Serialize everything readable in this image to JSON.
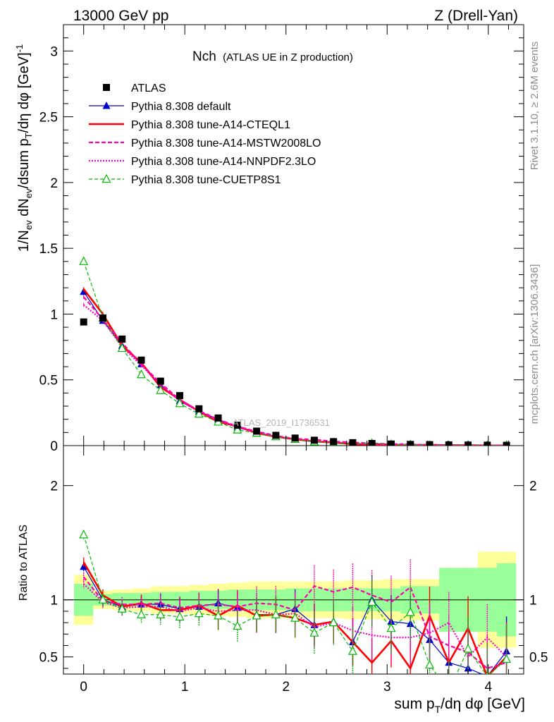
{
  "header": {
    "energy": "13000 GeV pp",
    "process": "Z (Drell-Yan)"
  },
  "side_text": {
    "rivet": "Rivet 3.1.10, ≥ 2.6M events",
    "site": "mcplots.cern.ch [arXiv:1306.3436]"
  },
  "plot_title": {
    "main": "Nch",
    "sub": "(ATLAS UE in Z production)"
  },
  "analysis_tag": "ATLAS_2019_I1736531",
  "chart_data": [
    {
      "type": "line",
      "panel": "main",
      "xlabel": "sum pT/dη dφ [GeV]",
      "ylabel": "1/Nev dNev/dsum pT/dη dφ [GeV]^-1",
      "xlim": [
        -0.2,
        4.35
      ],
      "ylim": [
        0,
        3.2
      ],
      "x_ticks": [
        "0",
        "1",
        "2",
        "3",
        "4"
      ],
      "y_ticks": [
        "0",
        "0.5",
        "1",
        "1.5",
        "2",
        "2.5",
        "3"
      ],
      "x": [
        0.0,
        0.19,
        0.38,
        0.57,
        0.76,
        0.95,
        1.14,
        1.33,
        1.52,
        1.71,
        1.9,
        2.09,
        2.28,
        2.47,
        2.66,
        2.85,
        3.04,
        3.23,
        3.42,
        3.61,
        3.8,
        3.99,
        4.18
      ],
      "series": [
        {
          "name": "ATLAS",
          "color": "#000000",
          "style": "data-squares",
          "values": [
            0.94,
            0.97,
            0.81,
            0.65,
            0.49,
            0.38,
            0.28,
            0.21,
            0.155,
            0.11,
            0.078,
            0.057,
            0.041,
            0.03,
            0.022,
            0.016,
            0.012,
            0.009,
            0.007,
            0.005,
            0.004,
            0.003,
            0.002
          ]
        },
        {
          "name": "Pythia 8.308 default",
          "color": "#0000cc",
          "style": "solid-thin-triangles",
          "values": [
            1.17,
            0.95,
            0.76,
            0.62,
            0.46,
            0.34,
            0.26,
            0.2,
            0.14,
            0.095,
            0.068,
            0.052,
            0.032,
            0.025,
            0.014,
            0.016,
            0.01,
            0.007,
            0.005,
            0.002,
            0.002,
            0.001,
            0.001
          ]
        },
        {
          "name": "Pythia 8.308 tune-A14-CTEQL1",
          "color": "#ff0000",
          "style": "solid-thick",
          "values": [
            1.19,
            1.0,
            0.76,
            0.63,
            0.445,
            0.35,
            0.26,
            0.18,
            0.147,
            0.095,
            0.068,
            0.048,
            0.032,
            0.024,
            0.011,
            0.007,
            0.005,
            0.004,
            0.006,
            0.003,
            0.003,
            0.001,
            0.001
          ]
        },
        {
          "name": "Pythia 8.308 tune-A14-MSTW2008LO",
          "color": "#ff00aa",
          "style": "dashed",
          "values": [
            1.13,
            0.96,
            0.78,
            0.62,
            0.475,
            0.35,
            0.265,
            0.2,
            0.145,
            0.108,
            0.075,
            0.052,
            0.046,
            0.032,
            0.024,
            0.017,
            0.012,
            0.01,
            0.005,
            0.003,
            0.002,
            0.001,
            0.001
          ]
        },
        {
          "name": "Pythia 8.308 tune-A14-NNPDF2.3LO",
          "color": "#ff00cc",
          "style": "dotted",
          "values": [
            1.07,
            0.95,
            0.75,
            0.61,
            0.46,
            0.34,
            0.26,
            0.19,
            0.14,
            0.1,
            0.068,
            0.05,
            0.031,
            0.024,
            0.016,
            0.011,
            0.008,
            0.006,
            0.005,
            0.004,
            0.002,
            0.002,
            0.001
          ]
        },
        {
          "name": "Pythia 8.308 tune-CUETP8S1",
          "color": "#00bb00",
          "style": "dashed-open-triangles",
          "values": [
            1.4,
            0.97,
            0.74,
            0.54,
            0.42,
            0.32,
            0.24,
            0.18,
            0.12,
            0.095,
            0.068,
            0.048,
            0.029,
            0.024,
            0.012,
            0.016,
            0.009,
            0.008,
            0.003,
            0.001,
            0.002,
            0.001,
            0.001
          ]
        }
      ]
    },
    {
      "type": "line",
      "panel": "ratio",
      "xlabel": "sum pT/dη dφ [GeV]",
      "ylabel": "Ratio to ATLAS",
      "xlim": [
        -0.2,
        4.35
      ],
      "ylim": [
        0.35,
        2.35
      ],
      "x_ticks": [
        "0",
        "1",
        "2",
        "3",
        "4"
      ],
      "y_ticks": [
        "0.5",
        "1",
        "2"
      ],
      "reference_line": 1,
      "bands": {
        "green_half_width": [
          0.14,
          0.05,
          0.06,
          0.06,
          0.07,
          0.07,
          0.08,
          0.08,
          0.09,
          0.09,
          0.09,
          0.1,
          0.1,
          0.1,
          0.1,
          0.1,
          0.1,
          0.12,
          0.12,
          0.28,
          0.28,
          0.28,
          0.32
        ],
        "yellow_half_width": [
          0.22,
          0.08,
          0.09,
          0.1,
          0.12,
          0.12,
          0.13,
          0.14,
          0.15,
          0.16,
          0.16,
          0.16,
          0.16,
          0.16,
          0.17,
          0.17,
          0.18,
          0.18,
          0.18,
          0.28,
          0.28,
          0.42,
          0.42
        ]
      },
      "series": [
        {
          "name": "Pythia 8.308 default",
          "color": "#0000cc",
          "values": [
            1.29,
            1.0,
            0.94,
            0.96,
            0.96,
            0.92,
            0.94,
            0.97,
            0.93,
            0.87,
            0.87,
            0.92,
            0.78,
            0.81,
            0.63,
            1.0,
            0.81,
            0.79,
            0.65,
            0.45,
            0.4,
            0.33,
            0.55
          ]
        },
        {
          "name": "Pythia 8.308 tune-A14-CTEQL1",
          "color": "#ff0000",
          "values": [
            1.33,
            1.04,
            0.94,
            0.97,
            0.91,
            0.91,
            0.95,
            0.86,
            0.95,
            0.86,
            0.87,
            0.84,
            0.78,
            0.81,
            0.63,
            0.45,
            0.64,
            0.4,
            0.86,
            0.45,
            0.75,
            0.33,
            0.5
          ]
        },
        {
          "name": "Pythia 8.308 tune-A14-MSTW2008LO",
          "color": "#ff00aa",
          "values": [
            1.2,
            0.99,
            0.96,
            0.96,
            0.97,
            0.93,
            0.95,
            0.96,
            0.94,
            0.97,
            0.96,
            0.91,
            1.12,
            1.07,
            1.11,
            1.04,
            0.98,
            1.11,
            0.68,
            0.6,
            0.54,
            0.4,
            0.45
          ]
        },
        {
          "name": "Pythia 8.308 tune-A14-NNPDF2.3LO",
          "color": "#ff00cc",
          "values": [
            1.14,
            0.98,
            0.93,
            0.94,
            0.94,
            0.9,
            0.93,
            0.9,
            0.91,
            0.91,
            0.87,
            0.88,
            0.76,
            0.8,
            0.73,
            0.69,
            0.67,
            0.67,
            0.71,
            0.8,
            0.5,
            0.67,
            0.5
          ]
        },
        {
          "name": "Pythia 8.308 tune-CUETP8S1",
          "color": "#00bb00",
          "values": [
            1.57,
            1.0,
            0.92,
            0.87,
            0.87,
            0.85,
            0.88,
            0.86,
            0.77,
            0.86,
            0.87,
            0.84,
            0.71,
            0.8,
            0.55,
            0.98,
            0.75,
            0.89,
            0.43,
            0.2,
            0.57,
            0.33,
            0.48
          ]
        }
      ]
    }
  ]
}
